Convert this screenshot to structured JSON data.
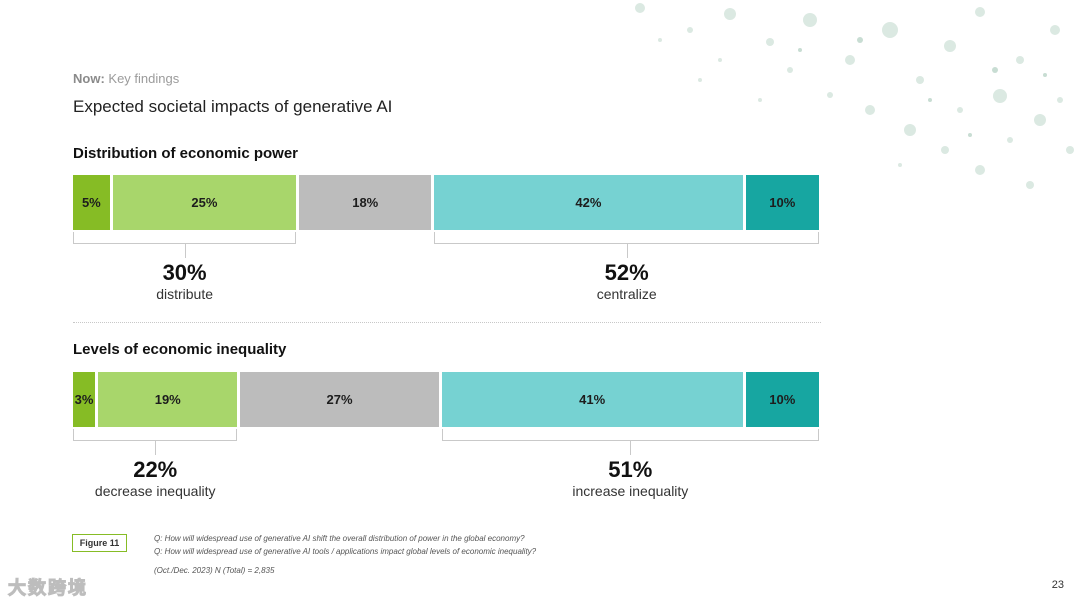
{
  "header": {
    "kicker_bold": "Now:",
    "kicker_rest": "Key findings",
    "subtitle": "Expected societal impacts of generative AI"
  },
  "colors": {
    "dark_green": "#86bc25",
    "light_green": "#a8d66b",
    "gray": "#bcbcbc",
    "light_teal": "#76d2d2",
    "dark_teal": "#17a6a1"
  },
  "chart_data": [
    {
      "type": "bar",
      "orientation": "horizontal-stacked-100",
      "title": "Distribution of economic power",
      "segments": [
        {
          "label": "5%",
          "value": 5,
          "color": "#86bc25"
        },
        {
          "label": "25%",
          "value": 25,
          "color": "#a8d66b"
        },
        {
          "label": "18%",
          "value": 18,
          "color": "#bcbcbc"
        },
        {
          "label": "42%",
          "value": 42,
          "color": "#76d2d2"
        },
        {
          "label": "10%",
          "value": 10,
          "color": "#17a6a1"
        }
      ],
      "groups": [
        {
          "value_label": "30%",
          "label": "distribute",
          "from": 0,
          "to": 1
        },
        {
          "value_label": "52%",
          "label": "centralize",
          "from": 3,
          "to": 4
        }
      ]
    },
    {
      "type": "bar",
      "orientation": "horizontal-stacked-100",
      "title": "Levels of economic inequality",
      "segments": [
        {
          "label": "3%",
          "value": 3,
          "color": "#86bc25"
        },
        {
          "label": "19%",
          "value": 19,
          "color": "#a8d66b"
        },
        {
          "label": "27%",
          "value": 27,
          "color": "#bcbcbc"
        },
        {
          "label": "41%",
          "value": 41,
          "color": "#76d2d2"
        },
        {
          "label": "10%",
          "value": 10,
          "color": "#17a6a1"
        }
      ],
      "groups": [
        {
          "value_label": "22%",
          "label": "decrease inequality",
          "from": 0,
          "to": 1
        },
        {
          "value_label": "51%",
          "label": "increase inequality",
          "from": 3,
          "to": 4
        }
      ]
    }
  ],
  "footer": {
    "figure_label": "Figure 11",
    "note_q1": "Q: How will widespread use of generative AI shift the overall distribution of power in the global economy?",
    "note_q2": "Q: How will widespread use of generative AI tools / applications impact global levels of economic inequality?",
    "note_base": "(Oct./Dec. 2023) N (Total) = 2,835",
    "page_number": "23",
    "watermark": "大数跨境"
  }
}
